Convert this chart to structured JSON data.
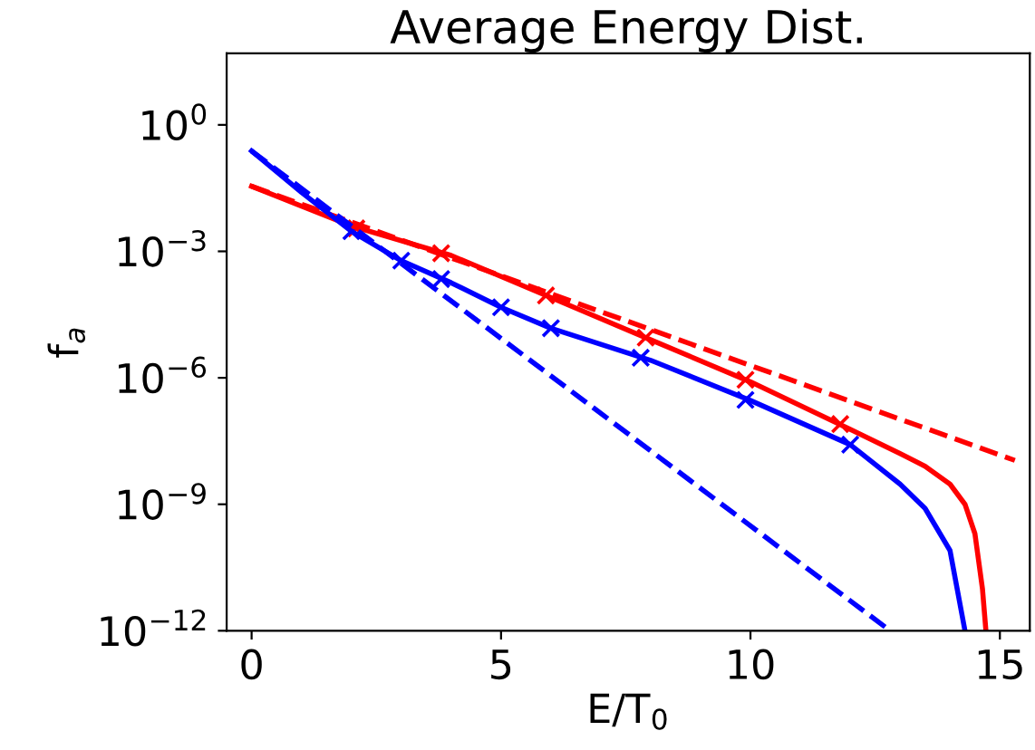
{
  "chart_data": {
    "type": "line",
    "title": "Average Energy Dist.",
    "xlabel": "E/T$_{0}$",
    "ylabel": "f$_{a}$",
    "log": "y",
    "grid": false,
    "legend": false,
    "xlim": [
      -0.5,
      15.6
    ],
    "xticks": [
      0,
      5,
      10,
      15
    ],
    "ylim": [
      1e-12,
      50
    ],
    "yticks": [
      {
        "value": 1,
        "label": "10$^{0}$"
      },
      {
        "value": 0.001,
        "label": "10$^{−3}$"
      },
      {
        "value": 1e-06,
        "label": "10$^{−6}$"
      },
      {
        "value": 1e-09,
        "label": "10$^{−9}$"
      },
      {
        "value": 1e-12,
        "label": "10$^{−12}$"
      }
    ],
    "series": [
      {
        "color": "#ff0000",
        "line_style": "solid",
        "marker": "none",
        "x": [
          0,
          2,
          4,
          6,
          8,
          10,
          12,
          13,
          13.5,
          14,
          14.3,
          14.5,
          14.65,
          14.72
        ],
        "values": [
          0.035,
          0.004,
          0.0008,
          8e-05,
          8e-06,
          8e-07,
          6e-08,
          1.6e-08,
          8e-09,
          3e-09,
          1e-09,
          2e-10,
          1e-11,
          1e-12
        ]
      },
      {
        "color": "#ff0000",
        "line_style": "dashed",
        "marker": "none",
        "x": [
          0,
          15.3
        ],
        "values": [
          0.035,
          1.1e-08
        ]
      },
      {
        "type": "scatter",
        "color": "#ff0000",
        "marker": "cross",
        "x": [
          2.1,
          3.8,
          5.9,
          7.9,
          9.9,
          11.8
        ],
        "values": [
          0.0035,
          0.0009,
          9e-05,
          9e-06,
          9e-07,
          8e-08
        ]
      },
      {
        "color": "#0000ff",
        "line_style": "solid",
        "marker": "none",
        "x": [
          0,
          1,
          2,
          3,
          4,
          5,
          6,
          8,
          10,
          12,
          13,
          13.5,
          14,
          14.3
        ],
        "values": [
          0.24,
          0.025,
          0.003,
          0.0006,
          0.00018,
          4.7e-05,
          1.5e-05,
          2.6e-06,
          2.9e-07,
          2.6e-08,
          3e-09,
          8e-10,
          8e-11,
          1e-12
        ]
      },
      {
        "color": "#0000ff",
        "line_style": "dashed",
        "marker": "none",
        "x": [
          0,
          12.8
        ],
        "values": [
          0.24,
          1e-12
        ]
      },
      {
        "type": "scatter",
        "color": "#0000ff",
        "marker": "cross",
        "x": [
          2,
          3,
          3.8,
          5,
          6,
          7.8,
          9.9,
          12
        ],
        "values": [
          0.003,
          0.0006,
          0.00022,
          4.7e-05,
          1.5e-05,
          3e-06,
          3e-07,
          2.6e-08
        ]
      }
    ]
  }
}
